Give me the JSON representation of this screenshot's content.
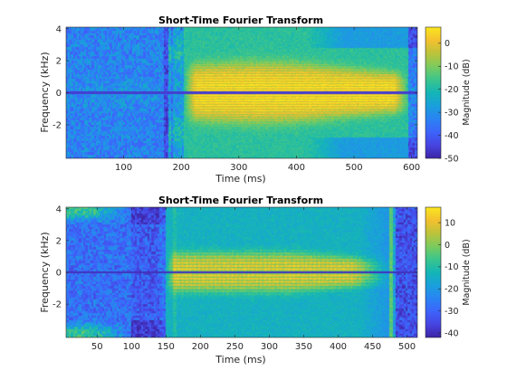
{
  "chart_data": [
    {
      "type": "heatmap",
      "title": "Short-Time Fourier Transform",
      "xlabel": "Time (ms)",
      "ylabel": "Frequency (kHz)",
      "xlim": [
        0,
        610
      ],
      "ylim": [
        -4.1,
        4.1
      ],
      "xticks": [
        100,
        200,
        300,
        400,
        500,
        600
      ],
      "yticks": [
        -2,
        0,
        2,
        4
      ],
      "colorbar": {
        "label": "Magnitude (dB)",
        "limits": [
          -50,
          7
        ],
        "ticks": [
          -50,
          -40,
          -30,
          -20,
          -10,
          0
        ]
      },
      "colormap": "parula",
      "signal": {
        "onset_ms": 205,
        "offset_ms": 595,
        "broadband_burst_ms": 180,
        "harmonic_spacing_khz": 0.16,
        "dc_notch": true
      }
    },
    {
      "type": "heatmap",
      "title": "Short-Time Fourier Transform",
      "xlabel": "Time (ms)",
      "ylabel": "Frequency (kHz)",
      "xlim": [
        5,
        515
      ],
      "ylim": [
        -4.1,
        4.1
      ],
      "xticks": [
        50,
        100,
        150,
        200,
        250,
        300,
        350,
        400,
        450,
        500
      ],
      "yticks": [
        -2,
        0,
        2,
        4
      ],
      "colorbar": {
        "label": "Magnitude (dB)",
        "limits": [
          -42,
          17
        ],
        "ticks": [
          -40,
          -30,
          -20,
          -10,
          0,
          10
        ]
      },
      "colormap": "parula",
      "signal": {
        "onset_ms": 150,
        "offset_ms": 430,
        "broadband_burst_ms": 478,
        "high_band_noise_until_ms": 100,
        "dc_notch": true
      }
    }
  ],
  "colors": {
    "parula": [
      "#3e26a8",
      "#4745e2",
      "#3d65fb",
      "#2a84f3",
      "#1aa0dc",
      "#14b6b6",
      "#3bc58c",
      "#7bcb5f",
      "#bbc33b",
      "#f3c02f",
      "#fae620"
    ]
  }
}
